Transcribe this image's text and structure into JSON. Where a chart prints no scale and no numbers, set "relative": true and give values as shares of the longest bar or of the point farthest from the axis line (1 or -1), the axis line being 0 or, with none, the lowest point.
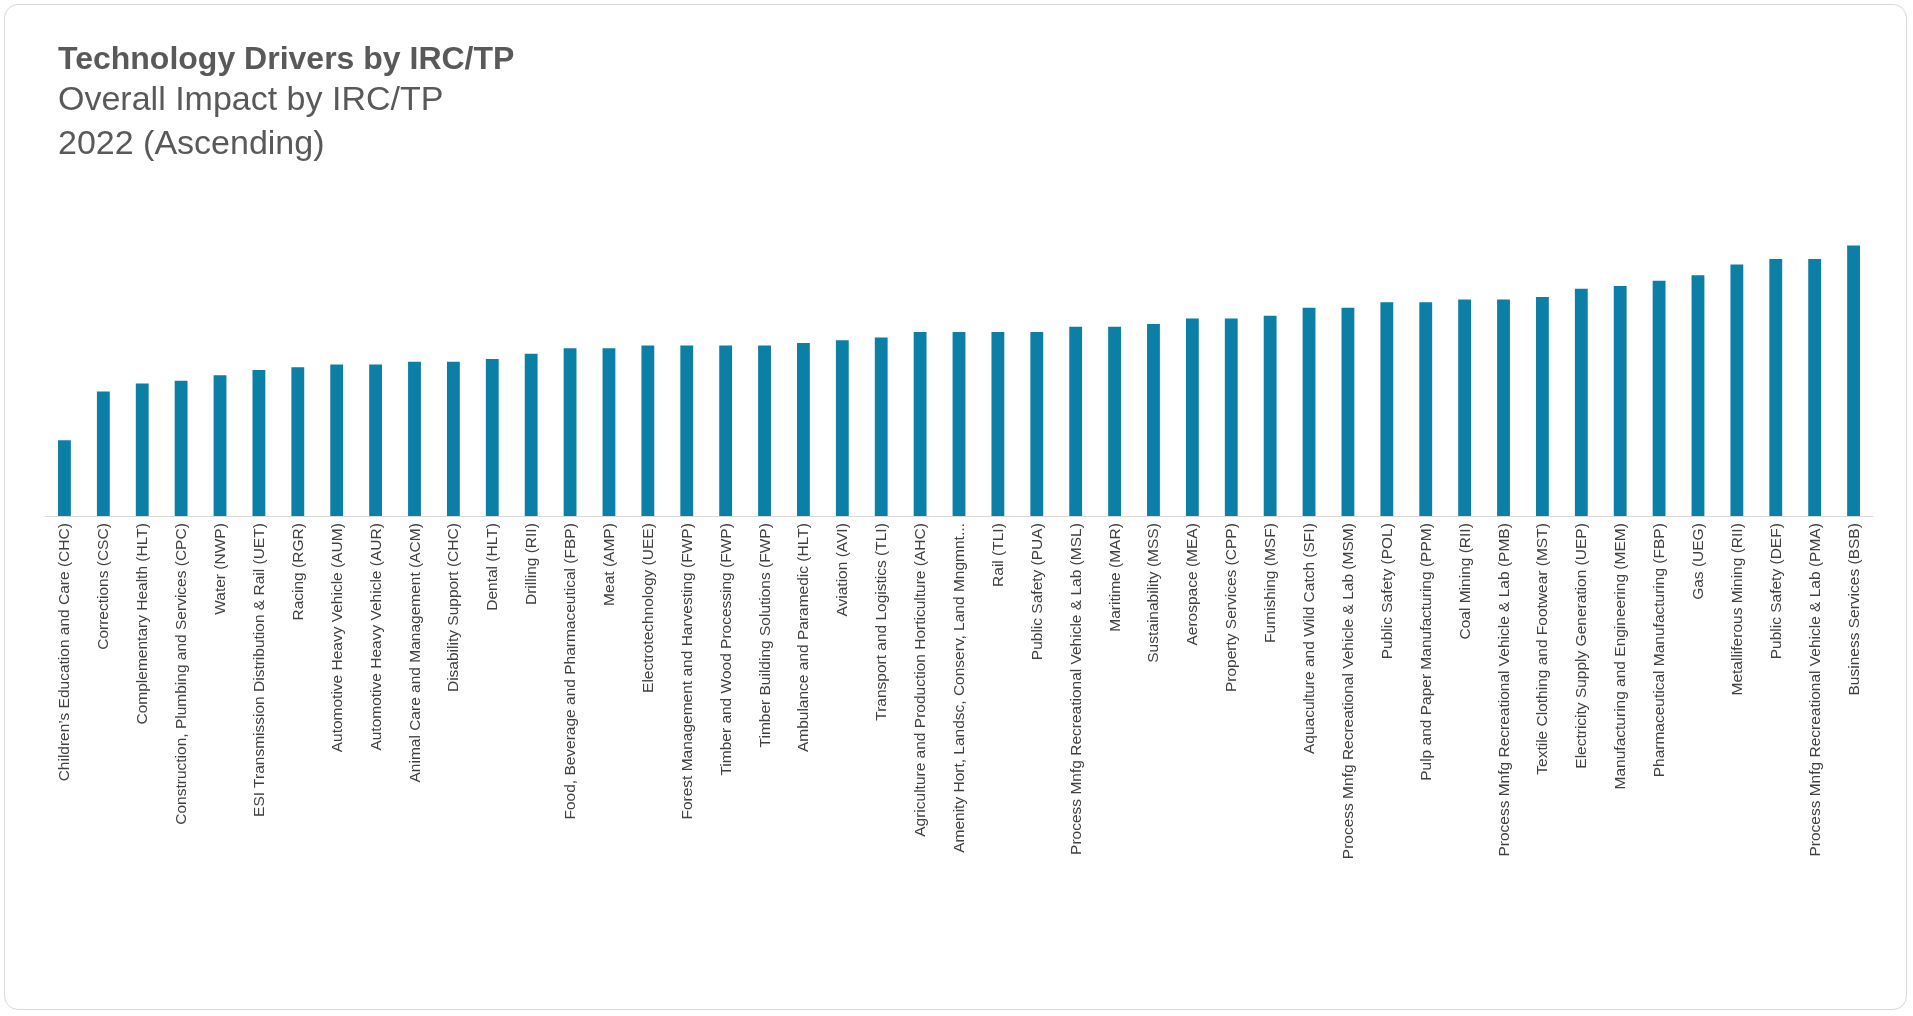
{
  "chart_data": {
    "type": "bar",
    "title": "Technology Drivers by IRC/TP",
    "subtitle": "Overall Impact by IRC/TP\n2022 (Ascending)",
    "relative": true,
    "color": "#0b7fa6",
    "grid": false,
    "legend": false,
    "categories": [
      "Children’s Education and Care (CHC)",
      "Corrections (CSC)",
      "Complementary Health (HLT)",
      "Construction, Plumbing and Services (CPC)",
      "Water (NWP)",
      "ESI Transmission Distribution & Rail (UET)",
      "Racing (RGR)",
      "Automotive Heavy Vehicle (AUM)",
      "Automotive Heavy Vehicle (AUR)",
      "Animal Care and Management (ACM)",
      "Disability Support (CHC)",
      "Dental (HLT)",
      "Drilling (RII)",
      "Food, Beverage and Pharmaceutical (FBP)",
      "Meat (AMP)",
      "Electrotechnology (UEE)",
      "Forest Management and Harvesting (FWP)",
      "Timber and Wood Processing (FWP)",
      "Timber Building Solutions (FWP)",
      "Ambulance and Paramedic (HLT)",
      "Aviation (AVI)",
      "Transport and Logistics (TLI)",
      "Agriculture and Production Horticulture (AHC)",
      "Amenity Hort, Landsc, Conserv, Land Mngmnt...",
      "Rail (TLI)",
      "Public Safety (PUA)",
      "Process Mnfg Recreational Vehicle & Lab (MSL)",
      "Maritime (MAR)",
      "Sustainability (MSS)",
      "Aerospace (MEA)",
      "Property Services (CPP)",
      "Furnishing (MSF)",
      "Aquaculture and Wild Catch (SFI)",
      "Process Mnfg Recreational Vehicle & Lab (MSM)",
      "Public Safety (POL)",
      "Pulp and Paper Manufacturing (PPM)",
      "Coal Mining (RII)",
      "Process Mnfg Recreational Vehicle & Lab (PMB)",
      "Textile Clothing and Footwear (MST)",
      "Electricity Supply Generation (UEP)",
      "Manufacturing and Engineering (MEM)",
      "Pharmaceutical Manufacturing (FBP)",
      "Gas (UEG)",
      "Metalliferous Mining (RII)",
      "Public Safety (DEF)",
      "Process Mnfg Recreational Vehicle & Lab (PMA)",
      "Business Services (BSB)"
    ],
    "values": [
      0.28,
      0.46,
      0.49,
      0.5,
      0.52,
      0.54,
      0.55,
      0.56,
      0.56,
      0.57,
      0.57,
      0.58,
      0.6,
      0.62,
      0.62,
      0.63,
      0.63,
      0.63,
      0.63,
      0.64,
      0.65,
      0.66,
      0.68,
      0.68,
      0.68,
      0.68,
      0.7,
      0.7,
      0.71,
      0.73,
      0.73,
      0.74,
      0.77,
      0.77,
      0.79,
      0.79,
      0.8,
      0.8,
      0.81,
      0.84,
      0.85,
      0.87,
      0.89,
      0.93,
      0.95,
      0.95,
      1
    ]
  }
}
